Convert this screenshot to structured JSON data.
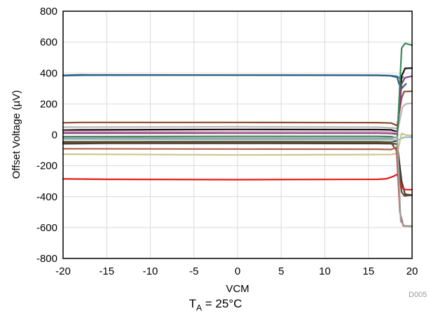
{
  "chart_data": {
    "type": "line",
    "xlabel": "VCM",
    "ylabel": "Offset Voltage (µV)",
    "xlim": [
      -20,
      20
    ],
    "ylim": [
      -800,
      800
    ],
    "xticks": [
      -20,
      -15,
      -10,
      -5,
      0,
      5,
      10,
      15,
      20
    ],
    "yticks": [
      -800,
      -600,
      -400,
      -200,
      0,
      200,
      400,
      600,
      800
    ],
    "grid": true,
    "legend": "none",
    "figure_id": "D005",
    "series": [
      {
        "color": "#5a8aa8",
        "x": [
          -20,
          -18,
          0,
          16,
          17.5,
          18.3,
          18.7,
          19
        ],
        "y": [
          382,
          385,
          387,
          386,
          384,
          380,
          360,
          375
        ]
      },
      {
        "color": "#2a5f80",
        "x": [
          -20,
          -18,
          0,
          16,
          17.5,
          18.3,
          18.5,
          18.8,
          19.3
        ],
        "y": [
          385,
          388,
          386,
          385,
          382,
          372,
          330,
          300,
          330
        ]
      },
      {
        "color": "#b8b8b8",
        "x": [
          -20,
          0,
          16,
          17.8,
          18.4,
          18.9,
          19.3,
          20
        ],
        "y": [
          50,
          52,
          50,
          45,
          40,
          180,
          200,
          205
        ]
      },
      {
        "color": "#8b4a2a",
        "x": [
          -20,
          -18,
          0,
          16,
          17.6,
          18.3,
          18.8,
          19.1,
          20
        ],
        "y": [
          78,
          80,
          80,
          79,
          76,
          60,
          240,
          280,
          282
        ]
      },
      {
        "color": "#111111",
        "x": [
          -20,
          -18,
          0,
          16,
          17.6,
          18.3,
          18.8,
          19.2,
          20
        ],
        "y": [
          30,
          32,
          35,
          34,
          32,
          20,
          380,
          430,
          432
        ]
      },
      {
        "color": "#8a3a7a",
        "x": [
          -20,
          0,
          16,
          17.6,
          18.3,
          18.8,
          19.2,
          20
        ],
        "y": [
          12,
          12,
          12,
          10,
          5,
          330,
          370,
          380
        ]
      },
      {
        "color": "#e0a8c8",
        "x": [
          -20,
          0,
          16,
          17.6,
          18.3
        ],
        "y": [
          22,
          20,
          20,
          18,
          15
        ]
      },
      {
        "color": "#3a8a5a",
        "x": [
          -20,
          0,
          16,
          17.6,
          18.3,
          18.8,
          19.2,
          20
        ],
        "y": [
          -12,
          -10,
          -10,
          -12,
          -20,
          560,
          592,
          580
        ]
      },
      {
        "color": "#8ab8c8",
        "x": [
          -20,
          0,
          16,
          17.6,
          18.3,
          18.9,
          19.2,
          20
        ],
        "y": [
          -28,
          -30,
          -30,
          -31,
          -35,
          -20,
          -15,
          -15
        ]
      },
      {
        "color": "#4a5a28",
        "x": [
          -20,
          0,
          16,
          17.6,
          18.3
        ],
        "y": [
          -45,
          -44,
          -45,
          -47,
          -40
        ]
      },
      {
        "color": "#3a3a3a",
        "x": [
          -20,
          -15,
          0,
          16,
          17.6,
          18.3,
          18.8,
          19.2,
          20
        ],
        "y": [
          -58,
          -55,
          -55,
          -56,
          -57,
          -60,
          -300,
          -385,
          -390
        ]
      },
      {
        "color": "#6a4a2a",
        "x": [
          -20,
          0,
          16,
          17.6,
          18.2,
          18.8,
          19.1,
          20
        ],
        "y": [
          -50,
          -48,
          -50,
          -52,
          -100,
          -370,
          -395,
          -390
        ]
      },
      {
        "color": "#c8c890",
        "x": [
          -20,
          0,
          16,
          17.6,
          18.3,
          18.8,
          19.2,
          20
        ],
        "y": [
          -125,
          -130,
          -128,
          -128,
          -120,
          10,
          0,
          -5
        ]
      },
      {
        "color": "#e41a1a",
        "x": [
          -20,
          -15,
          0,
          16,
          17,
          17.8,
          18.3,
          18.5,
          19,
          19.4,
          20
        ],
        "y": [
          -285,
          -288,
          -290,
          -288,
          -285,
          -270,
          -255,
          -300,
          -350,
          -355,
          -355
        ]
      },
      {
        "color": "#b06050",
        "x": [
          -20,
          0,
          16,
          17.6,
          18.2,
          18.6,
          19,
          20
        ],
        "y": [
          -90,
          -92,
          -93,
          -95,
          -80,
          -500,
          -590,
          -592
        ]
      },
      {
        "color": "#a0a0a0",
        "x": [
          -20,
          0,
          16,
          17.6,
          18.3,
          18.7,
          19.1,
          20
        ],
        "y": [
          -20,
          -22,
          -22,
          -22,
          -15,
          -560,
          -588,
          -590
        ]
      }
    ]
  },
  "caption": {
    "main": "T",
    "sub": "A",
    "rest": " = 25°C"
  }
}
